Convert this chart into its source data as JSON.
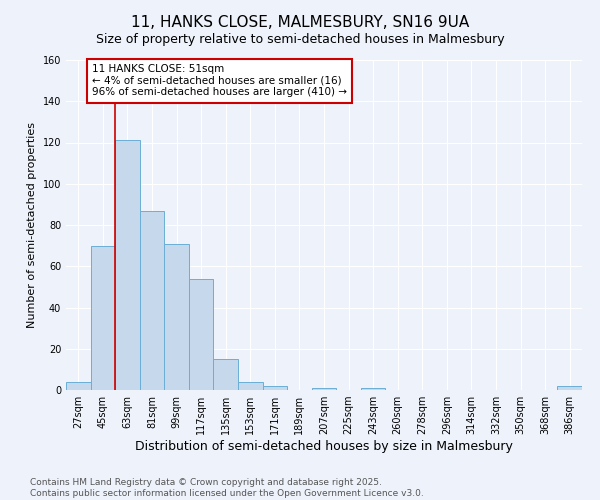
{
  "title": "11, HANKS CLOSE, MALMESBURY, SN16 9UA",
  "subtitle": "Size of property relative to semi-detached houses in Malmesbury",
  "xlabel": "Distribution of semi-detached houses by size in Malmesbury",
  "ylabel": "Number of semi-detached properties",
  "categories": [
    "27sqm",
    "45sqm",
    "63sqm",
    "81sqm",
    "99sqm",
    "117sqm",
    "135sqm",
    "153sqm",
    "171sqm",
    "189sqm",
    "207sqm",
    "225sqm",
    "243sqm",
    "260sqm",
    "278sqm",
    "296sqm",
    "314sqm",
    "332sqm",
    "350sqm",
    "368sqm",
    "386sqm"
  ],
  "values": [
    4,
    70,
    121,
    87,
    71,
    54,
    15,
    4,
    2,
    0,
    1,
    0,
    1,
    0,
    0,
    0,
    0,
    0,
    0,
    0,
    2
  ],
  "bar_color": "#c5d8ec",
  "bar_edge_color": "#6baed6",
  "red_line_x": 1.5,
  "annotation_title": "11 HANKS CLOSE: 51sqm",
  "annotation_line1": "← 4% of semi-detached houses are smaller (16)",
  "annotation_line2": "96% of semi-detached houses are larger (410) →",
  "annotation_box_color": "#ffffff",
  "annotation_box_edge": "#cc0000",
  "red_line_color": "#cc0000",
  "ylim": [
    0,
    160
  ],
  "yticks": [
    0,
    20,
    40,
    60,
    80,
    100,
    120,
    140,
    160
  ],
  "footer1": "Contains HM Land Registry data © Crown copyright and database right 2025.",
  "footer2": "Contains public sector information licensed under the Open Government Licence v3.0.",
  "title_fontsize": 11,
  "subtitle_fontsize": 9,
  "xlabel_fontsize": 9,
  "ylabel_fontsize": 8,
  "tick_fontsize": 7,
  "annotation_fontsize": 7.5,
  "footer_fontsize": 6.5,
  "background_color": "#eef2fb"
}
